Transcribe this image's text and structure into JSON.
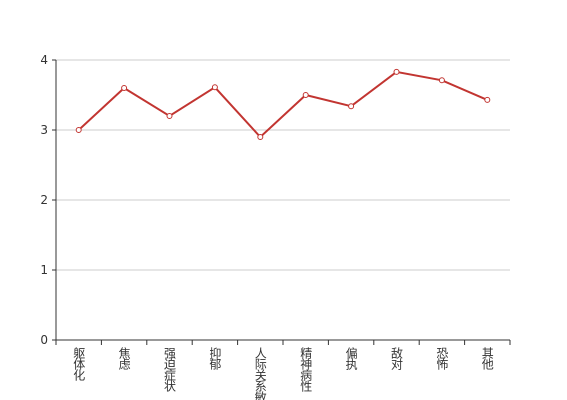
{
  "chart_data": {
    "type": "line",
    "categories": [
      "躯体化",
      "焦虑",
      "强迫症状",
      "抑郁",
      "人际关系敏感",
      "精神病性",
      "偏执",
      "敌对",
      "恐怖",
      "其他"
    ],
    "values": [
      3.0,
      3.6,
      3.2,
      3.61,
      2.9,
      3.5,
      3.34,
      3.83,
      3.71,
      3.43
    ],
    "color": "#c23531",
    "ylim": [
      0,
      4
    ],
    "yticks": [
      0,
      1,
      2,
      3,
      4
    ],
    "grid": true
  }
}
